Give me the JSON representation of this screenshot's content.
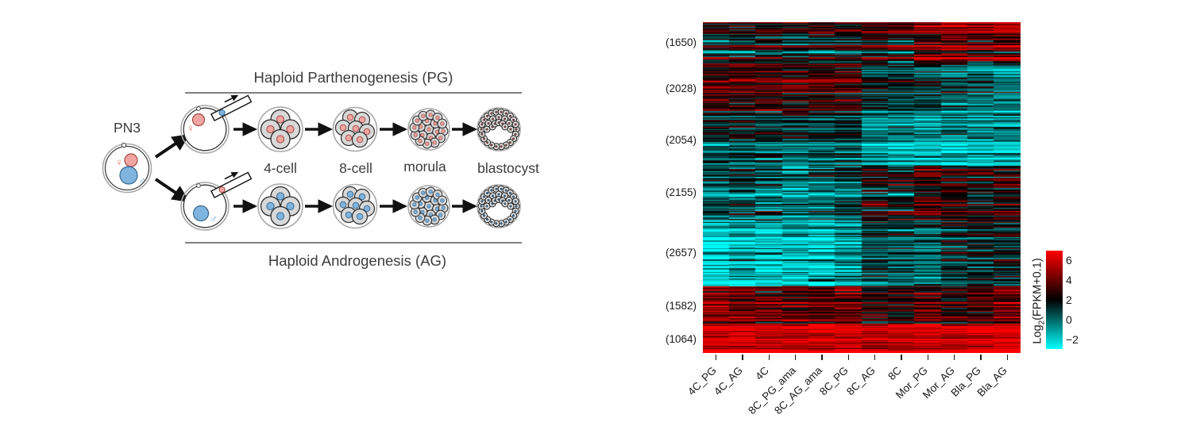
{
  "diagram": {
    "zygote_label": "PN3",
    "pg_title": "Haploid Parthenogenesis (PG)",
    "ag_title": "Haploid Androgenesis (AG)",
    "stage_labels": [
      "4-cell",
      "8-cell",
      "morula",
      "blastocyst"
    ],
    "female_symbol": "♀",
    "male_symbol": "♂",
    "pg_color": "#f2a5a0",
    "ag_color": "#7fb4de",
    "pg_stroke": "#9e4a44",
    "ag_stroke": "#38688f",
    "pg_symbol_color": "#e4736c",
    "ag_symbol_color": "#69a5d8"
  },
  "chart_data": {
    "type": "heatmap",
    "title": "",
    "xlabel": "",
    "ylabel": "",
    "columns": [
      "4C_PG",
      "4C_AG",
      "4C",
      "8C_PG_ama",
      "8C_AG_ama",
      "8C_PG",
      "8C_AG",
      "8C",
      "Mor_PG",
      "Mor_AG",
      "Bla_PG",
      "Bla_AG"
    ],
    "row_clusters": [
      {
        "label": "(1650)",
        "size": 1650,
        "col_means": [
          2.2,
          2.1,
          2.2,
          1.9,
          2.1,
          2.4,
          3.1,
          3.0,
          4.3,
          4.4,
          4.2,
          4.7
        ],
        "row_sd": 1.6,
        "cell_sd": 1.0
      },
      {
        "label": "(2028)",
        "size": 2028,
        "col_means": [
          3.4,
          3.2,
          3.4,
          3.0,
          3.1,
          3.0,
          1.4,
          1.0,
          0.9,
          0.4,
          -0.1,
          -0.4
        ],
        "row_sd": 1.4,
        "cell_sd": 1.0
      },
      {
        "label": "(2054)",
        "size": 2054,
        "col_means": [
          0.9,
          0.9,
          0.9,
          0.4,
          0.6,
          0.7,
          -0.7,
          -0.9,
          -1.4,
          -0.9,
          -1.1,
          -1.1
        ],
        "row_sd": 1.3,
        "cell_sd": 0.9
      },
      {
        "label": "(2155)",
        "size": 2155,
        "col_means": [
          -0.2,
          0.1,
          -0.1,
          -1.0,
          -0.3,
          0.4,
          1.6,
          1.4,
          2.6,
          2.6,
          2.0,
          2.0
        ],
        "row_sd": 1.5,
        "cell_sd": 1.1
      },
      {
        "label": "(2657)",
        "size": 2657,
        "col_means": [
          -2.1,
          -1.7,
          -1.9,
          -1.5,
          -1.8,
          -0.9,
          0.7,
          0.5,
          0.1,
          1.3,
          1.6,
          1.3
        ],
        "row_sd": 1.2,
        "cell_sd": 1.0
      },
      {
        "label": "(1582)",
        "size": 1582,
        "col_means": [
          4.9,
          4.7,
          4.4,
          4.1,
          4.2,
          4.6,
          3.2,
          3.3,
          4.2,
          3.2,
          3.9,
          4.3
        ],
        "row_sd": 1.3,
        "cell_sd": 0.9
      },
      {
        "label": "(1064)",
        "size": 1064,
        "col_means": [
          6.4,
          6.4,
          6.1,
          6.0,
          6.0,
          6.4,
          5.6,
          5.6,
          6.2,
          6.1,
          6.4,
          6.5
        ],
        "row_sd": 0.9,
        "cell_sd": 0.7
      }
    ],
    "value_domain": [
      -3,
      7
    ],
    "colormap": {
      "low": "#00ffff",
      "mid": "#000000",
      "high": "#ff0000",
      "mid_value": 2
    },
    "colorbar": {
      "ticks": [
        6,
        4,
        2,
        0,
        -2
      ],
      "label_pre": "Log",
      "label_sub": "2",
      "label_post": "(FPKM+0.1)"
    },
    "legend_position": "right",
    "grid": false
  }
}
